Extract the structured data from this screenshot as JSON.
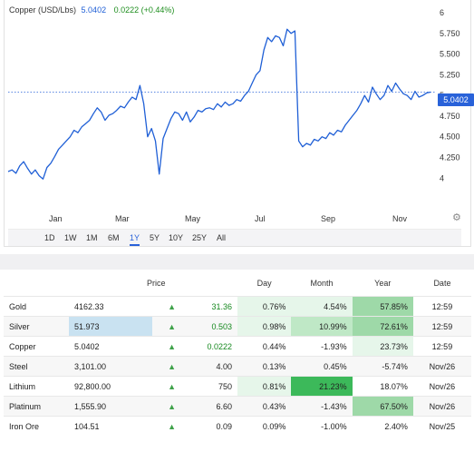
{
  "chart": {
    "name": "Copper (USD/Lbs)",
    "value": "5.0402",
    "change": "0.0222 (+0.44%)",
    "price_tag": "5.0402",
    "accent": "#2962d9",
    "gear_icon": "gear-icon"
  },
  "range_buttons": [
    "1D",
    "1W",
    "1M",
    "6M",
    "1Y",
    "5Y",
    "10Y",
    "25Y",
    "All"
  ],
  "active_range": "1Y",
  "chart_data": {
    "type": "line",
    "x_ticks": [
      "Jan",
      "Mar",
      "May",
      "Jul",
      "Sep",
      "Nov"
    ],
    "y_ticks": [
      "6",
      "5.750",
      "5.500",
      "5.250",
      "5",
      "4.750",
      "4.500",
      "4.250",
      "4"
    ],
    "ylim": [
      3.85,
      6.0
    ],
    "current_value": 5.0402,
    "series": [
      {
        "values": [
          4.08,
          4.1,
          4.06,
          4.15,
          4.2,
          4.12,
          4.05,
          4.1,
          4.03,
          3.99,
          4.13,
          4.18,
          4.26,
          4.35,
          4.4,
          4.45,
          4.5,
          4.58,
          4.55,
          4.62,
          4.66,
          4.7,
          4.78,
          4.85,
          4.8,
          4.7,
          4.76,
          4.78,
          4.82,
          4.87,
          4.85,
          4.92,
          4.98,
          4.95,
          5.12,
          4.9,
          4.5,
          4.6,
          4.45,
          4.05,
          4.48,
          4.6,
          4.72,
          4.8,
          4.78,
          4.7,
          4.8,
          4.68,
          4.74,
          4.82,
          4.8,
          4.84,
          4.85,
          4.83,
          4.9,
          4.86,
          4.92,
          4.88,
          4.9,
          4.95,
          4.93,
          5.0,
          5.05,
          5.15,
          5.25,
          5.3,
          5.55,
          5.7,
          5.65,
          5.72,
          5.7,
          5.6,
          5.8,
          5.75,
          5.78,
          4.45,
          4.38,
          4.42,
          4.4,
          4.47,
          4.45,
          4.5,
          4.48,
          4.55,
          4.52,
          4.58,
          4.56,
          4.64,
          4.7,
          4.76,
          4.82,
          4.9,
          5.0,
          4.92,
          5.1,
          5.02,
          4.95,
          5.0,
          5.12,
          5.05,
          5.15,
          5.08,
          5.02,
          5.0,
          4.95,
          5.05,
          4.98,
          5.0,
          5.03,
          5.04
        ]
      }
    ]
  },
  "table": {
    "headers": [
      "Price",
      "Day",
      "Month",
      "Year",
      "Date"
    ],
    "rows": [
      {
        "name": "Gold",
        "price": "4162.33",
        "chg": "31.36",
        "day": "0.76%",
        "month": "4.54%",
        "year": "57.85%",
        "date": "12:59"
      },
      {
        "name": "Silver",
        "price": "51.973",
        "chg": "0.503",
        "day": "0.98%",
        "month": "10.99%",
        "year": "72.61%",
        "date": "12:59"
      },
      {
        "name": "Copper",
        "price": "5.0402",
        "chg": "0.0222",
        "day": "0.44%",
        "month": "-1.93%",
        "year": "23.73%",
        "date": "12:59"
      },
      {
        "name": "Steel",
        "price": "3,101.00",
        "chg": "4.00",
        "day": "0.13%",
        "month": "0.45%",
        "year": "-5.74%",
        "date": "Nov/26"
      },
      {
        "name": "Lithium",
        "price": "92,800.00",
        "chg": "750",
        "day": "0.81%",
        "month": "21.23%",
        "year": "18.07%",
        "date": "Nov/26"
      },
      {
        "name": "Platinum",
        "price": "1,555.90",
        "chg": "6.60",
        "day": "0.43%",
        "month": "-1.43%",
        "year": "67.50%",
        "date": "Nov/26"
      },
      {
        "name": "Iron Ore",
        "price": "104.51",
        "chg": "0.09",
        "day": "0.09%",
        "month": "-1.00%",
        "year": "2.40%",
        "date": "Nov/25"
      }
    ]
  }
}
